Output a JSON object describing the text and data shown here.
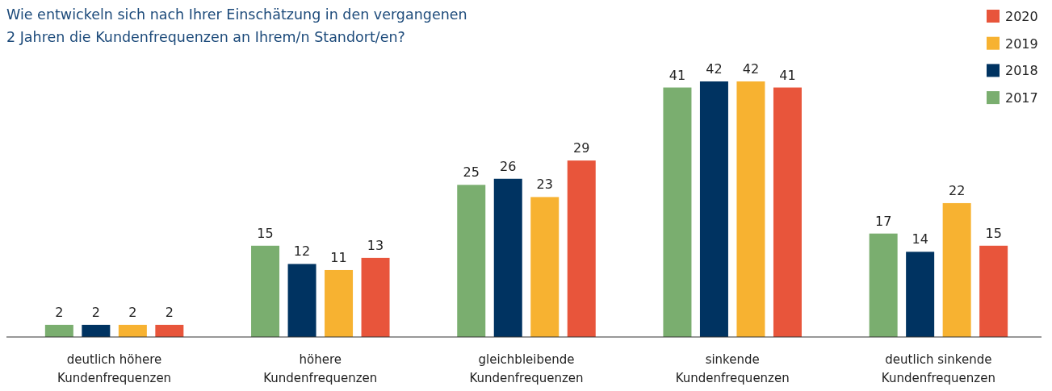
{
  "chart_data": {
    "type": "bar",
    "title": "Wie entwickeln sich nach Ihrer Einschätzung in den vergangenen 2 Jahren die Kundenfrequenzen an Ihrem/n Standort/en?",
    "categories": [
      "deutlich höhere Kundenfrequenzen",
      "höhere Kundenfrequenzen",
      "gleichbleibende Kundenfrequenzen",
      "sinkende Kundenfrequenzen",
      "deutlich sinkende Kundenfrequenzen"
    ],
    "series": [
      {
        "name": "2017",
        "color": "#7aae6f",
        "values": [
          2,
          15,
          25,
          41,
          17
        ]
      },
      {
        "name": "2018",
        "color": "#003361",
        "values": [
          2,
          12,
          26,
          42,
          14
        ]
      },
      {
        "name": "2019",
        "color": "#f7b231",
        "values": [
          2,
          11,
          23,
          42,
          22
        ]
      },
      {
        "name": "2020",
        "color": "#e8553b",
        "values": [
          2,
          13,
          29,
          41,
          15
        ]
      }
    ],
    "data_labels": true,
    "legend": "top right"
  }
}
